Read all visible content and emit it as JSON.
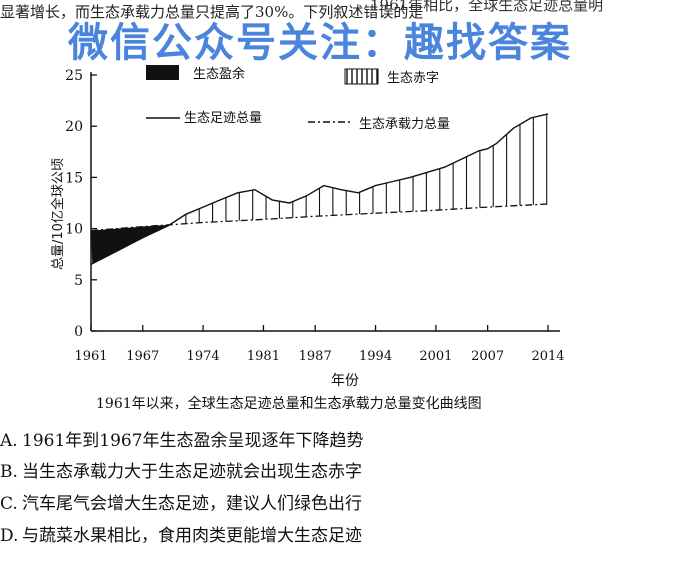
{
  "question": {
    "intro_text": "显著增长，而生态承载力总量只提高了30%。下列叙述错误的是",
    "fragment_top": "1961年相比，全球生态足迹总量明"
  },
  "watermark": "微信公众号关注：趣找答案",
  "chart_data": {
    "type": "line",
    "caption": "1961年以来，全球生态足迹总量和生态承载力总量变化曲线图",
    "xlabel": "年份",
    "ylabel": "总量/10亿全球公顷",
    "xlim": [
      1961,
      2014
    ],
    "ylim": [
      0,
      25
    ],
    "x_ticks": [
      "1961",
      "1967",
      "1974",
      "1981",
      "1987",
      "1994",
      "2001",
      "2007",
      "2014"
    ],
    "x_tick_values": [
      1961,
      1967,
      1974,
      1981,
      1987,
      1994,
      2001,
      2007,
      2014
    ],
    "y_ticks": [
      "0",
      "5",
      "10",
      "15",
      "20",
      "25"
    ],
    "y_tick_values": [
      0,
      5,
      10,
      15,
      20,
      25
    ],
    "legend": [
      {
        "label": "生态盈余",
        "style": "solid-fill"
      },
      {
        "label": "生态赤字",
        "style": "vertical-hatch"
      },
      {
        "label": "生态足迹总量",
        "style": "solid-line"
      },
      {
        "label": "生态承载力总量",
        "style": "dash-dot-line"
      }
    ],
    "series": [
      {
        "name": "生态足迹总量",
        "x": [
          1961,
          1964,
          1967,
          1970,
          1972,
          1974,
          1976,
          1978,
          1980,
          1982,
          1984,
          1986,
          1988,
          1990,
          1992,
          1994,
          1996,
          1998,
          2000,
          2002,
          2004,
          2005,
          2006,
          2007,
          2008,
          2010,
          2012,
          2014
        ],
        "y": [
          6.5,
          7.8,
          9.1,
          10.3,
          11.4,
          12.1,
          12.8,
          13.5,
          13.8,
          12.8,
          12.5,
          13.2,
          14.2,
          13.8,
          13.5,
          14.2,
          14.6,
          15.0,
          15.5,
          16.0,
          16.8,
          17.2,
          17.6,
          17.8,
          18.3,
          19.8,
          20.8,
          21.2
        ]
      },
      {
        "name": "生态承载力总量",
        "x": [
          1961,
          1967,
          1974,
          1981,
          1987,
          1994,
          2001,
          2007,
          2014
        ],
        "y": [
          9.8,
          10.2,
          10.6,
          10.9,
          11.2,
          11.5,
          11.8,
          12.1,
          12.4
        ]
      }
    ]
  },
  "options": [
    {
      "letter": "A.",
      "text": "1961年到1967年生态盈余呈现逐年下降趋势"
    },
    {
      "letter": "B.",
      "text": "当生态承载力大于生态足迹就会出现生态赤字"
    },
    {
      "letter": "C.",
      "text": "汽车尾气会增大生态足迹，建议人们绿色出行"
    },
    {
      "letter": "D.",
      "text": "与蔬菜水果相比，食用肉类更能增大生态足迹"
    }
  ]
}
